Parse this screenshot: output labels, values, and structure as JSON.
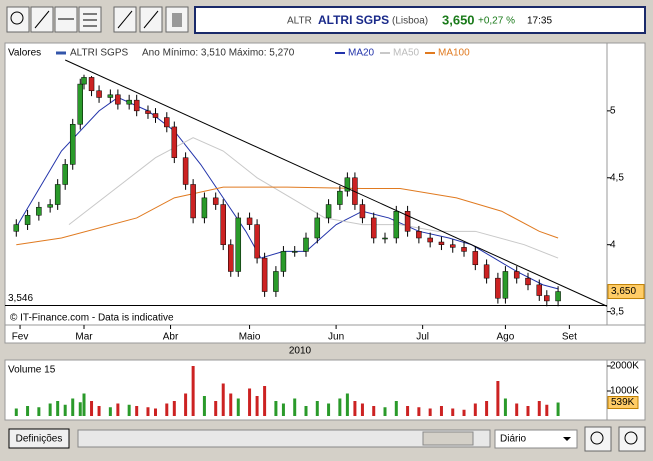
{
  "header": {
    "symbol": "ALTR",
    "name": "ALTRI SGPS",
    "market": "(Lisboa)",
    "price": "3,650",
    "change": "+0,27 %",
    "time": "17:35"
  },
  "chart_data": {
    "type": "candlestick",
    "legend_label": "Valores",
    "series_name": "ALTRI SGPS",
    "series_color": "#3355aa",
    "range_text": "Ano Mínimo: 3,510 Máximo: 5,270",
    "up_color": "#2a9a2a",
    "down_color": "#cc2222",
    "x": [
      3,
      6,
      9,
      12,
      14,
      16,
      18,
      20,
      21,
      23,
      25,
      28,
      30,
      33,
      35,
      38,
      40,
      43,
      45,
      48,
      50,
      53,
      56,
      58,
      60,
      62,
      65,
      67,
      69,
      72,
      74,
      77,
      80,
      83,
      86,
      89,
      91,
      93,
      95,
      98,
      101,
      104,
      107,
      110,
      113,
      116,
      119,
      122,
      125,
      128,
      131,
      133,
      136,
      139,
      142,
      144,
      147
    ],
    "open": [
      4.1,
      4.15,
      4.22,
      4.28,
      4.3,
      4.45,
      4.6,
      4.9,
      5.2,
      5.25,
      5.15,
      5.1,
      5.12,
      5.05,
      5.08,
      5.0,
      4.98,
      4.95,
      4.88,
      4.65,
      4.45,
      4.2,
      4.35,
      4.3,
      4.0,
      3.8,
      4.2,
      4.15,
      3.9,
      3.65,
      3.8,
      3.95,
      3.95,
      4.05,
      4.2,
      4.3,
      4.4,
      4.5,
      4.3,
      4.2,
      4.05,
      4.05,
      4.25,
      4.1,
      4.05,
      4.02,
      4.0,
      3.98,
      3.95,
      3.85,
      3.75,
      3.6,
      3.8,
      3.75,
      3.7,
      3.62,
      3.58
    ],
    "high": [
      4.19,
      4.26,
      4.32,
      4.34,
      4.49,
      4.64,
      4.94,
      5.24,
      5.27,
      5.26,
      5.19,
      5.16,
      5.16,
      5.12,
      5.12,
      5.04,
      5.02,
      4.99,
      4.92,
      4.69,
      4.49,
      4.39,
      4.39,
      4.34,
      4.04,
      4.24,
      4.24,
      4.19,
      3.94,
      3.84,
      3.99,
      3.99,
      4.09,
      4.24,
      4.34,
      4.44,
      4.54,
      4.54,
      4.34,
      4.24,
      4.09,
      4.29,
      4.29,
      4.14,
      4.09,
      4.06,
      4.04,
      4.02,
      3.99,
      3.89,
      3.79,
      3.84,
      3.84,
      3.79,
      3.74,
      3.66,
      3.69
    ],
    "low": [
      4.06,
      4.11,
      4.18,
      4.24,
      4.26,
      4.41,
      4.56,
      4.86,
      5.16,
      5.11,
      5.06,
      5.06,
      5.01,
      5.01,
      4.96,
      4.94,
      4.91,
      4.84,
      4.61,
      4.41,
      4.16,
      4.16,
      4.26,
      3.96,
      3.76,
      3.76,
      4.11,
      3.86,
      3.61,
      3.61,
      3.76,
      3.91,
      3.91,
      4.01,
      4.16,
      4.26,
      4.36,
      4.26,
      4.16,
      4.01,
      4.01,
      4.01,
      4.06,
      4.01,
      3.98,
      3.96,
      3.94,
      3.91,
      3.81,
      3.71,
      3.56,
      3.56,
      3.71,
      3.66,
      3.58,
      3.54,
      3.54
    ],
    "close": [
      4.15,
      4.22,
      4.28,
      4.3,
      4.45,
      4.6,
      4.9,
      5.2,
      5.25,
      5.15,
      5.1,
      5.12,
      5.05,
      5.08,
      5.0,
      4.98,
      4.95,
      4.88,
      4.65,
      4.45,
      4.2,
      4.35,
      4.3,
      4.0,
      3.8,
      4.2,
      4.15,
      3.9,
      3.65,
      3.8,
      3.95,
      3.95,
      4.05,
      4.2,
      4.3,
      4.4,
      4.5,
      4.3,
      4.2,
      4.05,
      4.05,
      4.25,
      4.1,
      4.05,
      4.02,
      4.0,
      3.98,
      3.95,
      3.85,
      3.75,
      3.6,
      3.8,
      3.75,
      3.7,
      3.62,
      3.58,
      3.65
    ],
    "moving_averages": [
      {
        "name": "MA20",
        "color": "#2233aa",
        "x": [
          3,
          15,
          25,
          30,
          38,
          45,
          52,
          58,
          64,
          68,
          74,
          80,
          88,
          95,
          102,
          110,
          118,
          124,
          130,
          136,
          143,
          147
        ],
        "values": [
          4.13,
          4.7,
          5.0,
          5.1,
          5.0,
          4.85,
          4.6,
          4.35,
          4.1,
          3.9,
          3.95,
          3.95,
          4.15,
          4.25,
          4.2,
          4.1,
          4.05,
          4.0,
          3.9,
          3.8,
          3.7,
          3.67
        ]
      },
      {
        "name": "MA50",
        "color": "#c8c8c8",
        "x": [
          17,
          40,
          50,
          58,
          67,
          76,
          85,
          95,
          105,
          115,
          125,
          138,
          147
        ],
        "values": [
          4.15,
          4.65,
          4.8,
          4.7,
          4.5,
          4.35,
          4.2,
          4.15,
          4.15,
          4.1,
          4.1,
          4.0,
          3.9
        ]
      },
      {
        "name": "MA100",
        "color": "#e07a20",
        "x": [
          3,
          15,
          35,
          45,
          58,
          75,
          95,
          105,
          120,
          132,
          142,
          147
        ],
        "values": [
          4.0,
          4.05,
          4.2,
          4.35,
          4.43,
          4.43,
          4.42,
          4.42,
          4.35,
          4.25,
          4.1,
          4.05
        ]
      }
    ],
    "trendline": {
      "x": [
        16,
        160
      ],
      "values": [
        5.38,
        3.54
      ]
    },
    "support_line": {
      "value": 3.546,
      "label": "3,546"
    },
    "last_price_label": "3,650",
    "xlim": [
      0,
      160
    ],
    "xticks": [
      {
        "value": 4,
        "label": "Fev"
      },
      {
        "value": 21,
        "label": "Mar"
      },
      {
        "value": 44,
        "label": "Abr"
      },
      {
        "value": 65,
        "label": "Maio"
      },
      {
        "value": 88,
        "label": "Jun"
      },
      {
        "value": 111,
        "label": "Jul"
      },
      {
        "value": 133,
        "label": "Ago"
      },
      {
        "value": 150,
        "label": "Set"
      }
    ],
    "x_label": "2010",
    "ylim": [
      3.4,
      5.38
    ],
    "yticks": [
      {
        "value": 3.5,
        "label": "3,5"
      },
      4,
      {
        "value": 4.5,
        "label": "4,5"
      },
      5
    ],
    "footnote": "© IT-Finance.com - Data is indicative",
    "volume": {
      "title": "Volume 15",
      "values": [
        300,
        400,
        350,
        500,
        600,
        450,
        700,
        550,
        900,
        600,
        400,
        350,
        500,
        450,
        400,
        350,
        300,
        500,
        600,
        900,
        2000,
        800,
        600,
        1300,
        900,
        700,
        1100,
        800,
        1200,
        600,
        500,
        700,
        400,
        600,
        500,
        700,
        900,
        600,
        500,
        400,
        350,
        600,
        400,
        350,
        300,
        400,
        300,
        250,
        500,
        600,
        1400,
        700,
        500,
        400,
        600,
        450,
        539
      ],
      "ylim": [
        0,
        2240
      ],
      "yticks": [
        {
          "value": 1000,
          "label": "1000K"
        },
        {
          "value": 2000,
          "label": "2000K"
        }
      ],
      "last_label": "539K"
    }
  },
  "footer": {
    "settings_button": "Definições",
    "period": "Diário"
  }
}
